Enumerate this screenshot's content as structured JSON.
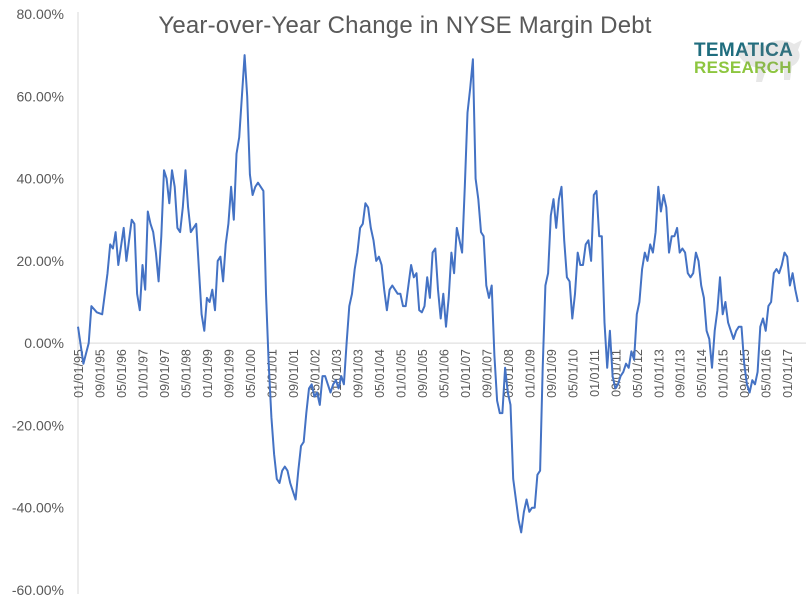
{
  "chart_data": {
    "type": "line",
    "title": "Year-over-Year Change in NYSE Margin Debt",
    "xlabel": "",
    "ylabel": "",
    "ylim": [
      -0.6,
      0.8
    ],
    "y_ticks": [
      0.8,
      0.6,
      0.4,
      0.2,
      0.0,
      -0.2,
      -0.4,
      -0.6
    ],
    "y_tick_labels": [
      "80.00%",
      "60.00%",
      "40.00%",
      "20.00%",
      "0.00%",
      "-20.00%",
      "-40.00%",
      "-60.00%"
    ],
    "x_tick_labels": [
      "01/01/95",
      "09/01/95",
      "05/01/96",
      "01/01/97",
      "09/01/97",
      "05/01/98",
      "01/01/99",
      "09/01/99",
      "05/01/00",
      "01/01/01",
      "09/01/01",
      "05/01/02",
      "01/01/03",
      "09/01/03",
      "05/01/04",
      "01/01/05",
      "09/01/05",
      "05/01/06",
      "01/01/07",
      "09/01/07",
      "05/01/08",
      "01/01/09",
      "09/01/09",
      "05/01/10",
      "01/01/11",
      "09/01/11",
      "05/01/12",
      "01/01/13",
      "09/01/13",
      "05/01/14",
      "01/01/15",
      "09/01/15",
      "05/01/16",
      "01/01/17"
    ],
    "x_range": [
      "1995-01",
      "2017-08"
    ],
    "grid": false,
    "series": [
      {
        "color": "#4472c4",
        "points": [
          [
            "1995-01",
            0.04
          ],
          [
            "1995-03",
            -0.05
          ],
          [
            "1995-05",
            0.0
          ],
          [
            "1995-06",
            0.09
          ],
          [
            "1995-08",
            0.075
          ],
          [
            "1995-10",
            0.07
          ],
          [
            "1995-12",
            0.17
          ],
          [
            "1996-01",
            0.24
          ],
          [
            "1996-02",
            0.23
          ],
          [
            "1996-03",
            0.27
          ],
          [
            "1996-04",
            0.19
          ],
          [
            "1996-06",
            0.28
          ],
          [
            "1996-07",
            0.2
          ],
          [
            "1996-09",
            0.3
          ],
          [
            "1996-10",
            0.29
          ],
          [
            "1996-11",
            0.12
          ],
          [
            "1996-12",
            0.08
          ],
          [
            "1997-01",
            0.19
          ],
          [
            "1997-02",
            0.13
          ],
          [
            "1997-03",
            0.32
          ],
          [
            "1997-04",
            0.29
          ],
          [
            "1997-05",
            0.27
          ],
          [
            "1997-06",
            0.22
          ],
          [
            "1997-07",
            0.15
          ],
          [
            "1997-08",
            0.26
          ],
          [
            "1997-09",
            0.42
          ],
          [
            "1997-10",
            0.4
          ],
          [
            "1997-11",
            0.34
          ],
          [
            "1997-12",
            0.42
          ],
          [
            "1998-01",
            0.38
          ],
          [
            "1998-02",
            0.28
          ],
          [
            "1998-03",
            0.27
          ],
          [
            "1998-04",
            0.33
          ],
          [
            "1998-05",
            0.42
          ],
          [
            "1998-06",
            0.33
          ],
          [
            "1998-07",
            0.27
          ],
          [
            "1998-08",
            0.28
          ],
          [
            "1998-09",
            0.29
          ],
          [
            "1998-10",
            0.18
          ],
          [
            "1998-11",
            0.07
          ],
          [
            "1998-12",
            0.03
          ],
          [
            "1999-01",
            0.11
          ],
          [
            "1999-02",
            0.1
          ],
          [
            "1999-03",
            0.13
          ],
          [
            "1999-04",
            0.08
          ],
          [
            "1999-05",
            0.2
          ],
          [
            "1999-06",
            0.21
          ],
          [
            "1999-07",
            0.15
          ],
          [
            "1999-08",
            0.24
          ],
          [
            "1999-09",
            0.29
          ],
          [
            "1999-10",
            0.38
          ],
          [
            "1999-11",
            0.3
          ],
          [
            "1999-12",
            0.46
          ],
          [
            "2000-01",
            0.5
          ],
          [
            "2000-02",
            0.6
          ],
          [
            "2000-03",
            0.7
          ],
          [
            "2000-04",
            0.6
          ],
          [
            "2000-05",
            0.41
          ],
          [
            "2000-06",
            0.36
          ],
          [
            "2000-07",
            0.38
          ],
          [
            "2000-08",
            0.39
          ],
          [
            "2000-09",
            0.38
          ],
          [
            "2000-10",
            0.37
          ],
          [
            "2000-11",
            0.12
          ],
          [
            "2000-12",
            -0.05
          ],
          [
            "2001-01",
            -0.18
          ],
          [
            "2001-02",
            -0.27
          ],
          [
            "2001-03",
            -0.33
          ],
          [
            "2001-04",
            -0.34
          ],
          [
            "2001-05",
            -0.31
          ],
          [
            "2001-06",
            -0.3
          ],
          [
            "2001-07",
            -0.31
          ],
          [
            "2001-08",
            -0.34
          ],
          [
            "2001-09",
            -0.36
          ],
          [
            "2001-10",
            -0.38
          ],
          [
            "2001-11",
            -0.31
          ],
          [
            "2001-12",
            -0.25
          ],
          [
            "2002-01",
            -0.24
          ],
          [
            "2002-02",
            -0.17
          ],
          [
            "2002-03",
            -0.11
          ],
          [
            "2002-04",
            -0.1
          ],
          [
            "2002-05",
            -0.13
          ],
          [
            "2002-06",
            -0.12
          ],
          [
            "2002-07",
            -0.15
          ],
          [
            "2002-08",
            -0.08
          ],
          [
            "2002-09",
            -0.08
          ],
          [
            "2002-10",
            -0.1
          ],
          [
            "2002-11",
            -0.12
          ],
          [
            "2002-12",
            -0.1
          ],
          [
            "2003-01",
            -0.09
          ],
          [
            "2003-02",
            -0.11
          ],
          [
            "2003-03",
            -0.08
          ],
          [
            "2003-04",
            -0.1
          ],
          [
            "2003-05",
            0.0
          ],
          [
            "2003-06",
            0.09
          ],
          [
            "2003-07",
            0.12
          ],
          [
            "2003-08",
            0.18
          ],
          [
            "2003-09",
            0.22
          ],
          [
            "2003-10",
            0.28
          ],
          [
            "2003-11",
            0.29
          ],
          [
            "2003-12",
            0.34
          ],
          [
            "2004-01",
            0.33
          ],
          [
            "2004-02",
            0.28
          ],
          [
            "2004-03",
            0.25
          ],
          [
            "2004-04",
            0.2
          ],
          [
            "2004-05",
            0.21
          ],
          [
            "2004-06",
            0.19
          ],
          [
            "2004-07",
            0.13
          ],
          [
            "2004-08",
            0.08
          ],
          [
            "2004-09",
            0.13
          ],
          [
            "2004-10",
            0.14
          ],
          [
            "2004-11",
            0.13
          ],
          [
            "2004-12",
            0.12
          ],
          [
            "2005-01",
            0.12
          ],
          [
            "2005-02",
            0.09
          ],
          [
            "2005-03",
            0.09
          ],
          [
            "2005-04",
            0.14
          ],
          [
            "2005-05",
            0.19
          ],
          [
            "2005-06",
            0.16
          ],
          [
            "2005-07",
            0.17
          ],
          [
            "2005-08",
            0.08
          ],
          [
            "2005-09",
            0.075
          ],
          [
            "2005-10",
            0.09
          ],
          [
            "2005-11",
            0.16
          ],
          [
            "2005-12",
            0.11
          ],
          [
            "2006-01",
            0.22
          ],
          [
            "2006-02",
            0.23
          ],
          [
            "2006-03",
            0.13
          ],
          [
            "2006-04",
            0.06
          ],
          [
            "2006-05",
            0.12
          ],
          [
            "2006-06",
            0.04
          ],
          [
            "2006-07",
            0.11
          ],
          [
            "2006-08",
            0.22
          ],
          [
            "2006-09",
            0.17
          ],
          [
            "2006-10",
            0.28
          ],
          [
            "2006-11",
            0.25
          ],
          [
            "2006-12",
            0.22
          ],
          [
            "2007-01",
            0.38
          ],
          [
            "2007-02",
            0.56
          ],
          [
            "2007-03",
            0.62
          ],
          [
            "2007-04",
            0.69
          ],
          [
            "2007-05",
            0.4
          ],
          [
            "2007-06",
            0.35
          ],
          [
            "2007-07",
            0.27
          ],
          [
            "2007-08",
            0.26
          ],
          [
            "2007-09",
            0.14
          ],
          [
            "2007-10",
            0.11
          ],
          [
            "2007-11",
            0.14
          ],
          [
            "2007-12",
            -0.03
          ],
          [
            "2008-01",
            -0.14
          ],
          [
            "2008-02",
            -0.17
          ],
          [
            "2008-03",
            -0.17
          ],
          [
            "2008-04",
            -0.06
          ],
          [
            "2008-05",
            -0.12
          ],
          [
            "2008-06",
            -0.15
          ],
          [
            "2008-07",
            -0.33
          ],
          [
            "2008-08",
            -0.38
          ],
          [
            "2008-09",
            -0.43
          ],
          [
            "2008-10",
            -0.46
          ],
          [
            "2008-11",
            -0.41
          ],
          [
            "2008-12",
            -0.38
          ],
          [
            "2009-01",
            -0.41
          ],
          [
            "2009-02",
            -0.4
          ],
          [
            "2009-03",
            -0.4
          ],
          [
            "2009-04",
            -0.32
          ],
          [
            "2009-05",
            -0.31
          ],
          [
            "2009-06",
            -0.06
          ],
          [
            "2009-07",
            0.14
          ],
          [
            "2009-08",
            0.17
          ],
          [
            "2009-09",
            0.31
          ],
          [
            "2009-10",
            0.35
          ],
          [
            "2009-11",
            0.28
          ],
          [
            "2009-12",
            0.35
          ],
          [
            "2010-01",
            0.38
          ],
          [
            "2010-02",
            0.25
          ],
          [
            "2010-03",
            0.16
          ],
          [
            "2010-04",
            0.15
          ],
          [
            "2010-05",
            0.06
          ],
          [
            "2010-06",
            0.12
          ],
          [
            "2010-07",
            0.22
          ],
          [
            "2010-08",
            0.19
          ],
          [
            "2010-09",
            0.19
          ],
          [
            "2010-10",
            0.24
          ],
          [
            "2010-11",
            0.25
          ],
          [
            "2010-12",
            0.2
          ],
          [
            "2011-01",
            0.36
          ],
          [
            "2011-02",
            0.37
          ],
          [
            "2011-03",
            0.26
          ],
          [
            "2011-04",
            0.26
          ],
          [
            "2011-05",
            0.05
          ],
          [
            "2011-06",
            -0.06
          ],
          [
            "2011-07",
            0.03
          ],
          [
            "2011-08",
            -0.08
          ],
          [
            "2011-09",
            -0.11
          ],
          [
            "2011-10",
            -0.1
          ],
          [
            "2011-11",
            -0.08
          ],
          [
            "2011-12",
            -0.07
          ],
          [
            "2012-01",
            -0.05
          ],
          [
            "2012-02",
            -0.06
          ],
          [
            "2012-03",
            -0.02
          ],
          [
            "2012-04",
            -0.04
          ],
          [
            "2012-05",
            0.07
          ],
          [
            "2012-06",
            0.1
          ],
          [
            "2012-07",
            0.18
          ],
          [
            "2012-08",
            0.22
          ],
          [
            "2012-09",
            0.2
          ],
          [
            "2012-10",
            0.24
          ],
          [
            "2012-11",
            0.22
          ],
          [
            "2012-12",
            0.27
          ],
          [
            "2013-01",
            0.38
          ],
          [
            "2013-02",
            0.32
          ],
          [
            "2013-03",
            0.36
          ],
          [
            "2013-04",
            0.33
          ],
          [
            "2013-05",
            0.22
          ],
          [
            "2013-06",
            0.26
          ],
          [
            "2013-07",
            0.26
          ],
          [
            "2013-08",
            0.28
          ],
          [
            "2013-09",
            0.22
          ],
          [
            "2013-10",
            0.23
          ],
          [
            "2013-11",
            0.22
          ],
          [
            "2013-12",
            0.17
          ],
          [
            "2014-01",
            0.16
          ],
          [
            "2014-02",
            0.17
          ],
          [
            "2014-03",
            0.22
          ],
          [
            "2014-04",
            0.2
          ],
          [
            "2014-05",
            0.14
          ],
          [
            "2014-06",
            0.11
          ],
          [
            "2014-07",
            0.03
          ],
          [
            "2014-08",
            0.01
          ],
          [
            "2014-09",
            -0.06
          ],
          [
            "2014-10",
            0.03
          ],
          [
            "2014-11",
            0.08
          ],
          [
            "2014-12",
            0.16
          ],
          [
            "2015-01",
            0.07
          ],
          [
            "2015-02",
            0.1
          ],
          [
            "2015-03",
            0.05
          ],
          [
            "2015-04",
            0.03
          ],
          [
            "2015-05",
            0.01
          ],
          [
            "2015-06",
            0.03
          ],
          [
            "2015-07",
            0.04
          ],
          [
            "2015-08",
            0.04
          ],
          [
            "2015-09",
            -0.05
          ],
          [
            "2015-10",
            -0.1
          ],
          [
            "2015-11",
            -0.12
          ],
          [
            "2015-12",
            -0.09
          ],
          [
            "2016-01",
            -0.1
          ],
          [
            "2016-02",
            -0.07
          ],
          [
            "2016-03",
            0.04
          ],
          [
            "2016-04",
            0.06
          ],
          [
            "2016-05",
            0.03
          ],
          [
            "2016-06",
            0.09
          ],
          [
            "2016-07",
            0.1
          ],
          [
            "2016-08",
            0.17
          ],
          [
            "2016-09",
            0.18
          ],
          [
            "2016-10",
            0.17
          ],
          [
            "2016-11",
            0.19
          ],
          [
            "2016-12",
            0.22
          ],
          [
            "2017-01",
            0.21
          ],
          [
            "2017-02",
            0.14
          ],
          [
            "2017-03",
            0.17
          ],
          [
            "2017-04",
            0.13
          ],
          [
            "2017-05",
            0.1
          ]
        ]
      }
    ]
  },
  "branding": {
    "logo_line1": "TEMATICA",
    "logo_line2": "RESEARCH",
    "logo_color_top": "#1f6d7e",
    "logo_color_bottom": "#8dc63f"
  }
}
